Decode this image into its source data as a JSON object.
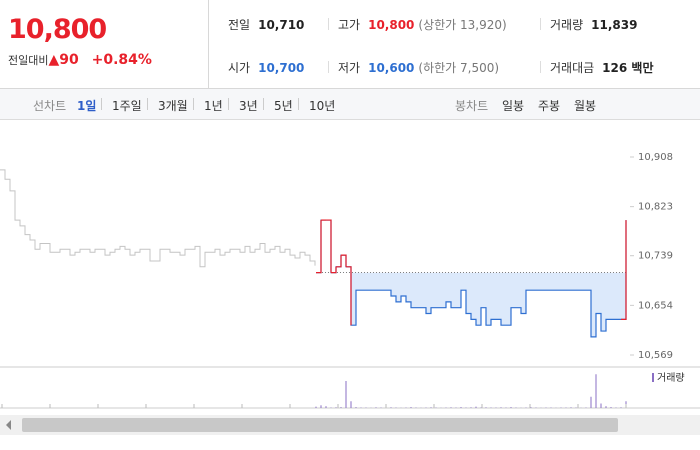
{
  "header": {
    "price": "10,800",
    "change_label": "전일대비",
    "change": "90",
    "change_pct": "+0.84%",
    "stats": [
      {
        "label": "전일",
        "value": "10,710"
      },
      {
        "label": "고가",
        "value": "10,800",
        "note": "(상한가 13,920)"
      },
      {
        "label": "거래량",
        "value": "11,839"
      },
      {
        "label": "시가",
        "value": "10,700"
      },
      {
        "label": "저가",
        "value": "10,600",
        "note": "(하한가 7,500)"
      },
      {
        "label": "거래대금",
        "value": "126 백만"
      }
    ]
  },
  "toolbar": {
    "line_label": "선차트",
    "periods": [
      "1일",
      "1주일",
      "3개월",
      "1년",
      "3년",
      "5년",
      "10년"
    ],
    "selected": "1일",
    "candle_label": "봉차트",
    "candles": [
      "일봉",
      "주봉",
      "월봉"
    ]
  },
  "chart_data": {
    "type": "line",
    "ylim": [
      10569,
      10908
    ],
    "yticks": [
      {
        "value": 10908,
        "label": "10,908"
      },
      {
        "value": 10823,
        "label": "10,823"
      },
      {
        "value": 10739,
        "label": "10,739"
      },
      {
        "value": 10654,
        "label": "10,654"
      },
      {
        "value": 10569,
        "label": "10,569"
      }
    ],
    "base": 10710,
    "up_color": "#e8212b",
    "down_color": "#2e6fd1",
    "series": [
      {
        "color": "#c4c4c4",
        "values": [
          10886,
          10870,
          10850,
          10800,
          10790,
          10775,
          10766,
          10750,
          10760,
          10760,
          10745,
          10745,
          10750,
          10750,
          10740,
          10745,
          10750,
          10750,
          10745,
          10750,
          10750,
          10740,
          10745,
          10750,
          10755,
          10750,
          10740,
          10745,
          10750,
          10750,
          10730,
          10730,
          10750,
          10750,
          10745,
          10745,
          10740,
          10750,
          10750,
          10755,
          10720,
          10745,
          10745,
          10750,
          10740,
          10745,
          10750,
          10750,
          10745,
          10755,
          10745,
          10750,
          10760,
          10745,
          10750,
          10755,
          10745,
          10750,
          10740,
          10735,
          10745,
          10740,
          10730,
          10722
        ]
      },
      {
        "color": "#2e6fd1",
        "values": [
          10710,
          10800,
          10800,
          10710,
          10720,
          10740,
          10720,
          10620,
          10680,
          10680,
          10680,
          10680,
          10680,
          10680,
          10680,
          10670,
          10660,
          10670,
          10660,
          10650,
          10650,
          10650,
          10640,
          10650,
          10650,
          10650,
          10660,
          10650,
          10650,
          10680,
          10640,
          10630,
          10620,
          10650,
          10620,
          10630,
          10630,
          10620,
          10620,
          10650,
          10650,
          10640,
          10680,
          10680,
          10680,
          10680,
          10680,
          10680,
          10680,
          10680,
          10680,
          10680,
          10680,
          10680,
          10680,
          10600,
          10640,
          10610,
          10630,
          10630,
          10630,
          10630,
          10800
        ]
      }
    ],
    "volume": {
      "label": "거래량",
      "color": "#8a6fc4",
      "ylim": [
        0,
        1600
      ],
      "values": [
        60,
        120,
        80,
        20,
        30,
        40,
        1200,
        300,
        40,
        20,
        20,
        10,
        30,
        20,
        20,
        30,
        20,
        10,
        20,
        40,
        20,
        10,
        20,
        30,
        20,
        10,
        20,
        30,
        20,
        40,
        20,
        30,
        60,
        20,
        30,
        20,
        20,
        30,
        20,
        40,
        20,
        10,
        20,
        30,
        20,
        10,
        20,
        20,
        10,
        20,
        20,
        30,
        20,
        10,
        20,
        500,
        1500,
        200,
        80,
        40,
        20,
        30,
        300
      ]
    }
  }
}
